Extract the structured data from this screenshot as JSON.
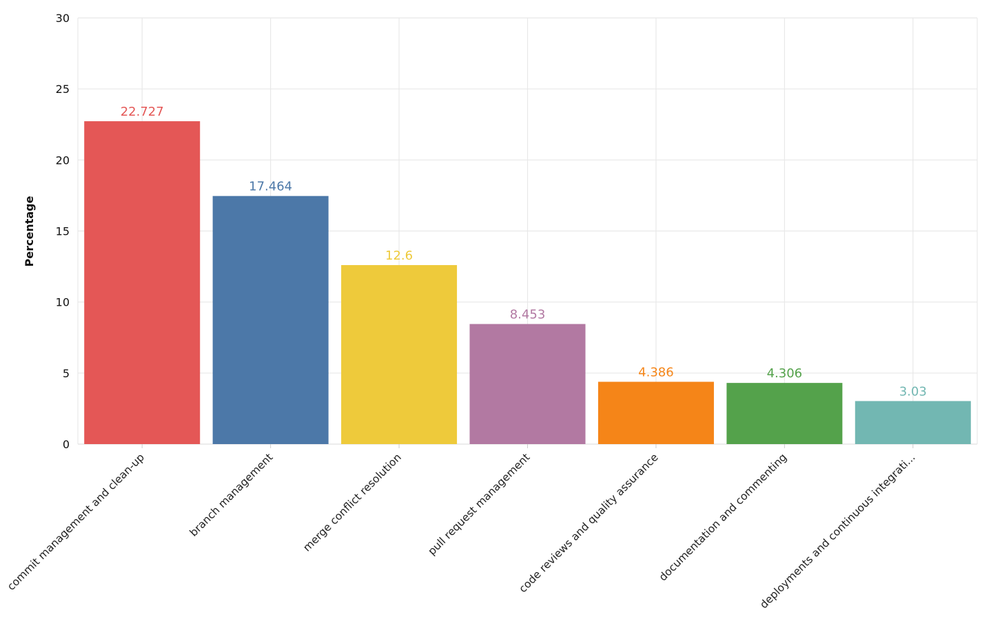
{
  "chart_data": {
    "type": "bar",
    "title": "",
    "xlabel": "",
    "ylabel": "Percentage",
    "ylim": [
      0,
      30
    ],
    "yticks": [
      0,
      5,
      10,
      15,
      20,
      25,
      30
    ],
    "grid": true,
    "categories": [
      "commit management and clean-up",
      "branch management",
      "merge conflict resolution",
      "pull request management",
      "code reviews and quality assurance",
      "documentation and commenting",
      "deployments and continuous integrati..."
    ],
    "values": [
      22.727,
      17.464,
      12.6,
      8.453,
      4.386,
      4.306,
      3.03
    ],
    "value_labels": [
      "22.727",
      "17.464",
      "12.6",
      "8.453",
      "4.386",
      "4.306",
      "3.03"
    ],
    "colors": [
      "#e45756",
      "#4c78a8",
      "#eeca3b",
      "#b279a2",
      "#f58518",
      "#54a24b",
      "#72b7b2"
    ],
    "label_colors": [
      "#e45756",
      "#4c78a8",
      "#eeca3b",
      "#b279a2",
      "#f58518",
      "#54a24b",
      "#72b7b2"
    ]
  }
}
